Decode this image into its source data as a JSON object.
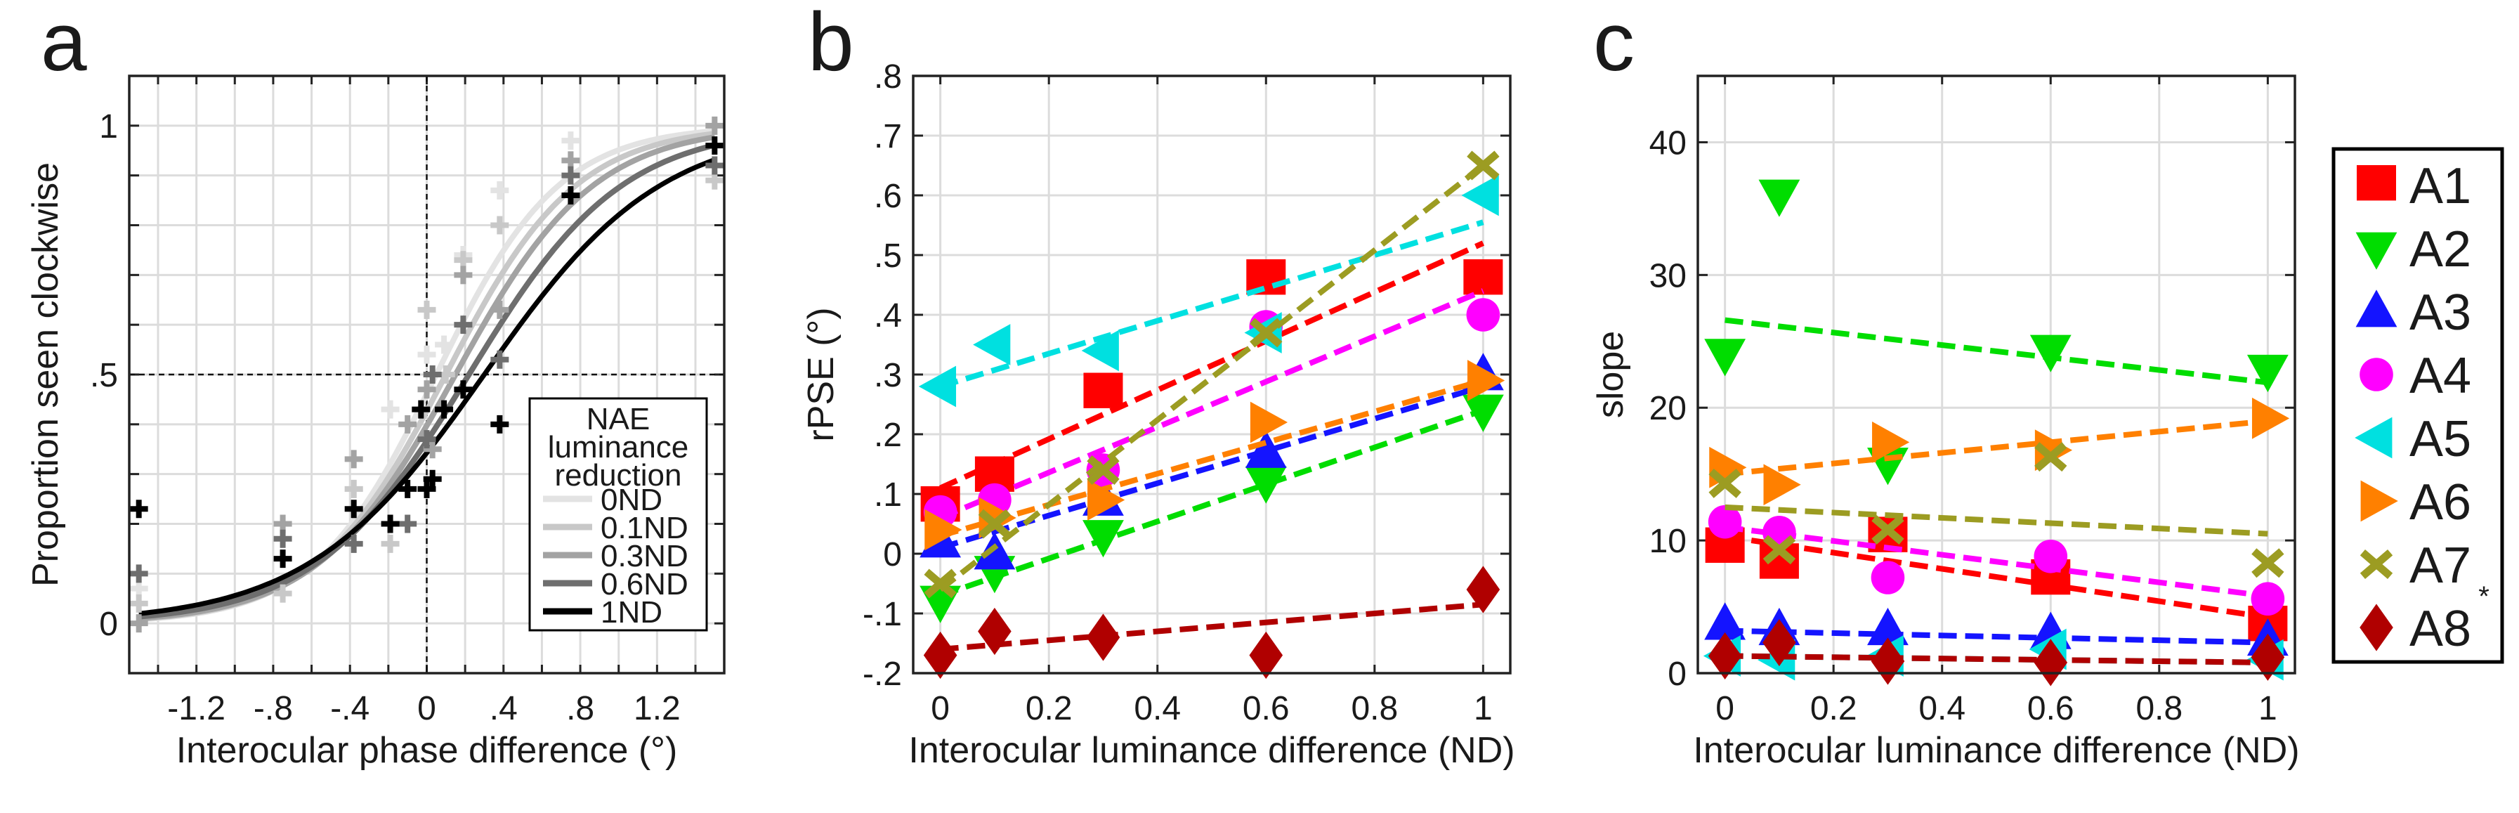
{
  "chart_data": [
    {
      "panel": "a",
      "type": "line",
      "xlabel": "Interocular phase difference (°)",
      "ylabel": "Proportion seen clockwise",
      "xlim": [
        -1.55,
        1.55
      ],
      "ylim": [
        -0.1,
        1.1
      ],
      "xticks": [
        -1.2,
        -0.8,
        -0.4,
        0,
        0.4,
        0.8,
        1.2
      ],
      "xtick_labels": [
        "-1.2",
        "-.8",
        "-.4",
        "0",
        ".4",
        ".8",
        "1.2"
      ],
      "yticks": [
        0,
        0.5,
        1
      ],
      "ytick_labels": [
        "0",
        ".5",
        "1"
      ],
      "grid": true,
      "reference_lines": {
        "x": 0,
        "y": 0.5
      },
      "legend": {
        "title": [
          "NAE",
          "luminance",
          "reduction"
        ],
        "placement": "bottom-right"
      },
      "series": [
        {
          "name": "0ND",
          "color": "#e3e3e3",
          "pse": 0.05,
          "spread": 0.32,
          "points": [
            [
              -1.5,
              0.07
            ],
            [
              -0.75,
              0.2
            ],
            [
              -0.38,
              0.27
            ],
            [
              -0.19,
              0.43
            ],
            [
              0,
              0.54
            ],
            [
              0.09,
              0.56
            ],
            [
              0.19,
              0.74
            ],
            [
              0.38,
              0.87
            ],
            [
              0.75,
              0.97
            ],
            [
              1.5,
              1.0
            ]
          ]
        },
        {
          "name": "0.1ND",
          "color": "#c8c8c8",
          "pse": 0.1,
          "spread": 0.34,
          "points": [
            [
              -1.5,
              0.04
            ],
            [
              -0.75,
              0.06
            ],
            [
              -0.38,
              0.27
            ],
            [
              -0.19,
              0.16
            ],
            [
              0,
              0.63
            ],
            [
              0.1,
              0.5
            ],
            [
              0.19,
              0.73
            ],
            [
              0.38,
              0.8
            ],
            [
              0.75,
              0.93
            ],
            [
              1.5,
              0.89
            ]
          ]
        },
        {
          "name": "0.3ND",
          "color": "#a3a3a3",
          "pse": 0.15,
          "spread": 0.36,
          "points": [
            [
              -1.5,
              0.0
            ],
            [
              -0.75,
              0.2
            ],
            [
              -0.38,
              0.33
            ],
            [
              -0.1,
              0.4
            ],
            [
              0,
              0.47
            ],
            [
              0.03,
              0.35
            ],
            [
              0.19,
              0.7
            ],
            [
              0.38,
              0.63
            ],
            [
              0.75,
              0.93
            ],
            [
              1.5,
              1.0
            ]
          ]
        },
        {
          "name": "0.6ND",
          "color": "#6e6e6e",
          "pse": 0.22,
          "spread": 0.4,
          "points": [
            [
              -1.5,
              0.1
            ],
            [
              -0.75,
              0.17
            ],
            [
              -0.38,
              0.16
            ],
            [
              -0.1,
              0.2
            ],
            [
              0,
              0.37
            ],
            [
              0.03,
              0.5
            ],
            [
              0.19,
              0.6
            ],
            [
              0.38,
              0.53
            ],
            [
              0.75,
              0.9
            ],
            [
              1.5,
              0.92
            ]
          ]
        },
        {
          "name": "1ND",
          "color": "#000000",
          "pse": 0.3,
          "spread": 0.46,
          "points": [
            [
              -1.5,
              0.23
            ],
            [
              -0.75,
              0.13
            ],
            [
              -0.38,
              0.23
            ],
            [
              -0.19,
              0.2
            ],
            [
              -0.1,
              0.27
            ],
            [
              -0.03,
              0.43
            ],
            [
              0,
              0.27
            ],
            [
              0.03,
              0.29
            ],
            [
              0.09,
              0.43
            ],
            [
              0.19,
              0.47
            ],
            [
              0.38,
              0.4
            ],
            [
              0.75,
              0.86
            ],
            [
              1.5,
              0.96
            ]
          ]
        }
      ]
    },
    {
      "panel": "b",
      "type": "scatter",
      "xlabel": "Interocular luminance difference (ND)",
      "ylabel": "rPSE (°)",
      "xlim": [
        -0.05,
        1.05
      ],
      "ylim": [
        -0.2,
        0.8
      ],
      "x": [
        0,
        0.1,
        0.3,
        0.6,
        1
      ],
      "xticks": [
        0,
        0.2,
        0.4,
        0.6,
        0.8,
        1
      ],
      "xtick_labels": [
        "0",
        "0.2",
        "0.4",
        "0.6",
        "0.8",
        "1"
      ],
      "yticks": [
        -0.2,
        -0.1,
        0,
        0.1,
        0.2,
        0.3,
        0.4,
        0.5,
        0.6,
        0.7,
        0.8
      ],
      "ytick_labels": [
        "-.2",
        "-.1",
        "0",
        ".1",
        ".2",
        ".3",
        ".4",
        ".5",
        ".6",
        ".7",
        ".8"
      ],
      "grid": true,
      "series": [
        {
          "name": "A1",
          "marker": "square",
          "color": "#ff0000",
          "values": [
            0.08,
            0.13,
            0.27,
            0.46,
            0.46
          ],
          "fit": [
            0.11,
            0.52
          ]
        },
        {
          "name": "A2",
          "marker": "triangle-down",
          "color": "#00dd00",
          "values": [
            -0.08,
            -0.03,
            0.03,
            0.12,
            0.24
          ],
          "fit": [
            -0.07,
            0.24
          ]
        },
        {
          "name": "A3",
          "marker": "triangle-up",
          "color": "#1414ff",
          "values": [
            0.02,
            0.0,
            0.09,
            0.17,
            0.3
          ],
          "fit": [
            0.01,
            0.28
          ]
        },
        {
          "name": "A4",
          "marker": "circle",
          "color": "#ff00ff",
          "values": [
            0.07,
            0.09,
            0.14,
            0.38,
            0.4
          ],
          "fit": [
            0.06,
            0.44
          ]
        },
        {
          "name": "A5",
          "marker": "triangle-left",
          "color": "#00e0e0",
          "values": [
            0.28,
            0.35,
            0.34,
            0.37,
            0.6
          ],
          "fit": [
            0.28,
            0.555
          ]
        },
        {
          "name": "A6",
          "marker": "triangle-right",
          "color": "#ff8000",
          "values": [
            0.04,
            0.06,
            0.09,
            0.22,
            0.29
          ],
          "fit": [
            0.03,
            0.29
          ]
        },
        {
          "name": "A7",
          "marker": "x",
          "color": "#9c9c22",
          "values": [
            -0.05,
            0.05,
            0.14,
            0.37,
            0.65
          ],
          "fit": [
            -0.06,
            0.65
          ]
        },
        {
          "name": "A8",
          "marker": "diamond",
          "color": "#b00000",
          "values": [
            -0.17,
            -0.13,
            -0.14,
            -0.17,
            -0.06
          ],
          "fit": [
            -0.16,
            -0.085
          ]
        }
      ]
    },
    {
      "panel": "c",
      "type": "scatter",
      "xlabel": "Interocular luminance difference (ND)",
      "ylabel": "slope",
      "xlim": [
        -0.05,
        1.05
      ],
      "ylim": [
        0,
        45
      ],
      "x": [
        0,
        0.1,
        0.3,
        0.6,
        1
      ],
      "xticks": [
        0,
        0.2,
        0.4,
        0.6,
        0.8,
        1
      ],
      "xtick_labels": [
        "0",
        "0.2",
        "0.4",
        "0.6",
        "0.8",
        "1"
      ],
      "yticks": [
        0,
        10,
        20,
        30,
        40
      ],
      "ytick_labels": [
        "0",
        "10",
        "20",
        "30",
        "40"
      ],
      "grid": true,
      "legend": {
        "placement": "outside-right",
        "entries": [
          "A1",
          "A2",
          "A3",
          "A4",
          "A5",
          "A6",
          "A7",
          "A8"
        ],
        "annotation": {
          "entry": "A8",
          "text": "*"
        }
      },
      "series": [
        {
          "name": "A1",
          "marker": "square",
          "color": "#ff0000",
          "values": [
            9.5,
            8.3,
            10.3,
            7.1,
            3.6
          ],
          "fit": [
            10.3,
            4.2
          ]
        },
        {
          "name": "A2",
          "marker": "triangle-down",
          "color": "#00dd00",
          "values": [
            24,
            36,
            15.8,
            24.3,
            22.8
          ],
          "fit": [
            26.6,
            21.9
          ]
        },
        {
          "name": "A3",
          "marker": "triangle-up",
          "color": "#1414ff",
          "values": [
            3.7,
            3.3,
            3.3,
            3.0,
            2.5
          ],
          "fit": [
            3.2,
            2.3
          ]
        },
        {
          "name": "A4",
          "marker": "circle",
          "color": "#ff00ff",
          "values": [
            11.4,
            10.6,
            7.2,
            8.8,
            5.6
          ],
          "fit": [
            11.0,
            5.8
          ]
        },
        {
          "name": "A5",
          "marker": "triangle-left",
          "color": "#00e0e0",
          "values": [
            1.3,
            1.0,
            1.3,
            1.8,
            1.0
          ],
          "fit": [
            1.3,
            0.8
          ]
        },
        {
          "name": "A6",
          "marker": "triangle-right",
          "color": "#ff8000",
          "values": [
            15.5,
            14.2,
            17.4,
            16.8,
            19.2
          ],
          "fit": [
            15.0,
            19.0
          ]
        },
        {
          "name": "A7",
          "marker": "x",
          "color": "#9c9c22",
          "values": [
            14.3,
            9.3,
            10.8,
            16.3,
            8.3
          ],
          "fit": [
            12.5,
            10.5
          ]
        },
        {
          "name": "A8",
          "marker": "diamond",
          "color": "#b00000",
          "values": [
            1.3,
            2.3,
            0.9,
            0.8,
            1.2
          ],
          "fit": [
            1.3,
            0.8
          ]
        }
      ]
    }
  ]
}
